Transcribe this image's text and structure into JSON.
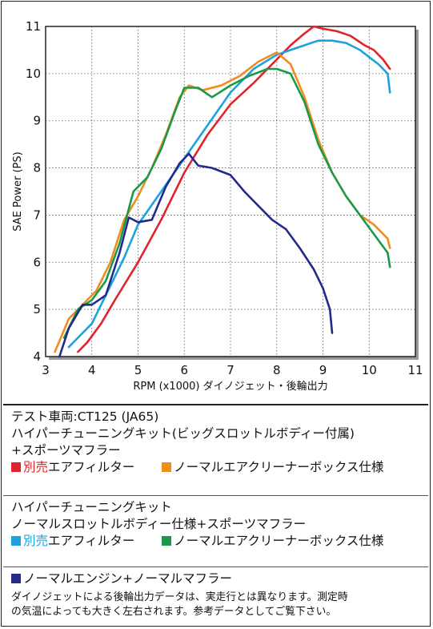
{
  "chart_data": {
    "type": "line",
    "xlabel": "RPM (x1000) ダイノジェット・後輪出力",
    "ylabel": "SAE Power (PS)",
    "xlim": [
      3,
      11
    ],
    "ylim": [
      4,
      11
    ],
    "xticks": [
      3,
      4,
      5,
      6,
      7,
      8,
      9,
      10,
      11
    ],
    "yticks": [
      4,
      5,
      6,
      7,
      8,
      9,
      10,
      11
    ],
    "grid": true,
    "series": [
      {
        "key": "red",
        "color": "#e1232c",
        "x": [
          3.7,
          3.9,
          4.2,
          4.5,
          5.0,
          5.5,
          6.0,
          6.5,
          7.0,
          7.5,
          8.0,
          8.3,
          8.6,
          8.8,
          9.0,
          9.3,
          9.6,
          9.9,
          10.1,
          10.3,
          10.45
        ],
        "y": [
          4.1,
          4.3,
          4.7,
          5.2,
          6.0,
          6.9,
          7.9,
          8.7,
          9.35,
          9.8,
          10.3,
          10.6,
          10.85,
          11.0,
          10.95,
          10.9,
          10.8,
          10.6,
          10.5,
          10.3,
          10.1
        ]
      },
      {
        "key": "blue",
        "color": "#1aa3e0",
        "x": [
          3.5,
          3.7,
          4.0,
          4.3,
          4.7,
          5.0,
          5.5,
          6.0,
          6.5,
          7.0,
          7.5,
          8.0,
          8.3,
          8.6,
          8.9,
          9.2,
          9.5,
          9.8,
          10.0,
          10.2,
          10.4,
          10.45
        ],
        "y": [
          4.2,
          4.4,
          4.7,
          5.3,
          6.1,
          6.8,
          7.5,
          8.2,
          8.9,
          9.6,
          10.1,
          10.4,
          10.5,
          10.6,
          10.7,
          10.7,
          10.65,
          10.5,
          10.35,
          10.2,
          10.0,
          9.6
        ]
      },
      {
        "key": "orange",
        "color": "#f08c1e",
        "x": [
          3.2,
          3.5,
          3.8,
          4.1,
          4.4,
          4.7,
          5.0,
          5.3,
          5.6,
          5.9,
          6.1,
          6.4,
          6.8,
          7.2,
          7.6,
          8.0,
          8.3,
          8.6,
          8.9,
          9.2,
          9.5,
          9.8,
          10.1,
          10.4,
          10.45
        ],
        "y": [
          4.1,
          4.8,
          5.1,
          5.4,
          6.0,
          6.9,
          7.4,
          8.0,
          8.7,
          9.5,
          9.75,
          9.65,
          9.75,
          9.95,
          10.25,
          10.45,
          10.2,
          9.5,
          8.6,
          7.9,
          7.4,
          7.0,
          6.8,
          6.5,
          6.3
        ]
      },
      {
        "key": "green",
        "color": "#1a9a48",
        "x": [
          3.4,
          3.7,
          4.0,
          4.3,
          4.6,
          4.9,
          5.2,
          5.5,
          5.8,
          6.0,
          6.3,
          6.6,
          7.0,
          7.4,
          7.8,
          8.0,
          8.3,
          8.6,
          8.9,
          9.2,
          9.5,
          9.8,
          10.1,
          10.4,
          10.45
        ],
        "y": [
          4.4,
          5.0,
          5.2,
          5.6,
          6.4,
          7.5,
          7.8,
          8.4,
          9.2,
          9.7,
          9.7,
          9.5,
          9.75,
          9.95,
          10.1,
          10.1,
          10.0,
          9.4,
          8.5,
          7.9,
          7.4,
          7.0,
          6.6,
          6.2,
          5.9
        ]
      },
      {
        "key": "navy",
        "color": "#232a8c",
        "x": [
          3.3,
          3.5,
          3.8,
          4.0,
          4.3,
          4.6,
          4.8,
          5.0,
          5.3,
          5.6,
          5.9,
          6.1,
          6.3,
          6.6,
          7.0,
          7.3,
          7.6,
          7.9,
          8.2,
          8.5,
          8.8,
          9.0,
          9.15,
          9.2
        ],
        "y": [
          4.0,
          4.6,
          5.1,
          5.1,
          5.3,
          6.2,
          6.95,
          6.85,
          6.9,
          7.6,
          8.1,
          8.3,
          8.05,
          8.0,
          7.85,
          7.5,
          7.2,
          6.9,
          6.7,
          6.3,
          5.85,
          5.45,
          5.0,
          4.5
        ]
      }
    ]
  },
  "info": {
    "vehicle": "テスト車両:CT125 (JA65)",
    "kit1_line1": "ハイパーチューニングキット(ビッグスロットルボディー付属)",
    "kit1_line2": "+スポーツマフラー",
    "legend_red_prefix": "別売",
    "legend_red_suffix": "エアフィルター",
    "legend_orange": "ノーマルエアクリーナーボックス仕様",
    "kit2_line1": "ハイパーチューニングキット",
    "kit2_line2": "ノーマルスロットルボディー仕様+スポーツマフラー",
    "legend_blue_prefix": "別売",
    "legend_blue_suffix": "エアフィルター",
    "legend_green": "ノーマルエアクリーナーボックス仕様",
    "legend_navy": "ノーマルエンジン+ノーマルマフラー",
    "note_line1": "ダイノジェットによる後輪出力データは、実走行とは異なります。測定時",
    "note_line2": "の気温によっても大きく左右されます。参考データとしてご覧下さい。"
  },
  "colors": {
    "red": "#e1232c",
    "orange": "#f08c1e",
    "blue": "#1aa3e0",
    "green": "#1a9a48",
    "navy": "#232a8c"
  }
}
